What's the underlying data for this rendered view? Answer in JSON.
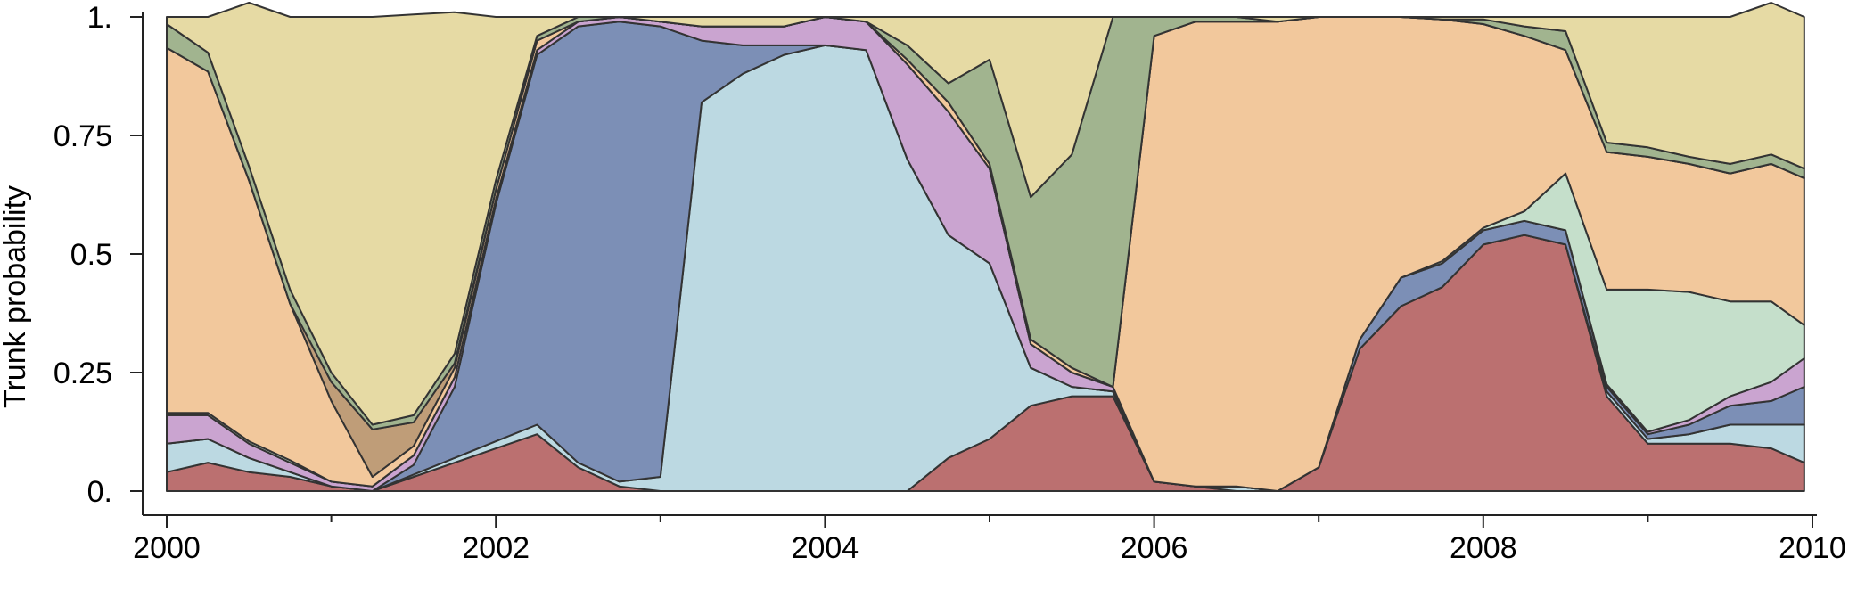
{
  "chart_data": {
    "type": "area",
    "stacked": true,
    "normalized": true,
    "title": "",
    "xlabel": "",
    "ylabel": "Trunk probability",
    "xlim": [
      2000,
      2010
    ],
    "ylim": [
      0,
      1
    ],
    "x_ticks": [
      2000,
      2002,
      2004,
      2006,
      2008,
      2010
    ],
    "x_tick_labels": [
      "2000",
      "2002",
      "2004",
      "2006",
      "2008",
      "2010"
    ],
    "y_ticks": [
      0,
      0.25,
      0.5,
      0.75,
      1
    ],
    "y_tick_labels": [
      "0.",
      "0.25",
      "0.5",
      "0.75",
      "1."
    ],
    "grid": false,
    "legend": "none",
    "x": [
      2000.0,
      2000.25,
      2000.5,
      2000.75,
      2001.0,
      2001.25,
      2001.5,
      2001.75,
      2002.0,
      2002.25,
      2002.5,
      2002.75,
      2003.0,
      2003.25,
      2003.5,
      2003.75,
      2004.0,
      2004.25,
      2004.5,
      2004.75,
      2005.0,
      2005.25,
      2005.5,
      2005.75,
      2006.0,
      2006.25,
      2006.5,
      2006.75,
      2007.0,
      2007.25,
      2007.5,
      2007.75,
      2008.0,
      2008.25,
      2008.5,
      2008.75,
      2009.0,
      2009.25,
      2009.5,
      2009.75,
      2009.95
    ],
    "series": [
      {
        "color": "#bb7070",
        "values": [
          0.04,
          0.06,
          0.04,
          0.03,
          0.01,
          0.0,
          0.03,
          0.06,
          0.09,
          0.12,
          0.05,
          0.01,
          0.0,
          0.0,
          0.0,
          0.0,
          0.0,
          0.0,
          0.0,
          0.07,
          0.11,
          0.18,
          0.2,
          0.2,
          0.02,
          0.01,
          0.0,
          0.0,
          0.05,
          0.3,
          0.39,
          0.43,
          0.52,
          0.54,
          0.52,
          0.2,
          0.1,
          0.1,
          0.1,
          0.09,
          0.06
        ]
      },
      {
        "color": "#bcd9e2",
        "values": [
          0.06,
          0.05,
          0.03,
          0.01,
          0.0,
          0.0,
          0.005,
          0.01,
          0.015,
          0.02,
          0.01,
          0.01,
          0.03,
          0.82,
          0.88,
          0.92,
          0.94,
          0.93,
          0.7,
          0.47,
          0.37,
          0.08,
          0.02,
          0.01,
          0.0,
          0.0,
          0.01,
          0.0,
          0.0,
          0.0,
          0.0,
          0.0,
          0.0,
          0.0,
          0.0,
          0.01,
          0.01,
          0.02,
          0.04,
          0.05,
          0.08
        ]
      },
      {
        "color": "#7c8fb6",
        "values": [
          0.0,
          0.0,
          0.0,
          0.0,
          0.0,
          0.0,
          0.02,
          0.15,
          0.5,
          0.78,
          0.92,
          0.97,
          0.95,
          0.13,
          0.06,
          0.02,
          0.0,
          0.0,
          0.0,
          0.0,
          0.0,
          0.0,
          0.0,
          0.0,
          0.0,
          0.0,
          0.0,
          0.0,
          0.0,
          0.02,
          0.06,
          0.05,
          0.03,
          0.03,
          0.03,
          0.01,
          0.01,
          0.02,
          0.04,
          0.05,
          0.08
        ]
      },
      {
        "color": "#caa4d0",
        "values": [
          0.06,
          0.05,
          0.03,
          0.02,
          0.01,
          0.01,
          0.02,
          0.02,
          0.01,
          0.01,
          0.01,
          0.01,
          0.01,
          0.03,
          0.04,
          0.04,
          0.06,
          0.06,
          0.2,
          0.26,
          0.2,
          0.05,
          0.03,
          0.01,
          0.0,
          0.0,
          0.0,
          0.0,
          0.0,
          0.0,
          0.0,
          0.0,
          0.0,
          0.0,
          0.0,
          0.005,
          0.005,
          0.01,
          0.02,
          0.04,
          0.06
        ]
      },
      {
        "color": "#c5dfcb",
        "values": [
          0.005,
          0.005,
          0.005,
          0.005,
          0.0,
          0.0,
          0.0,
          0.0,
          0.0,
          0.0,
          0.0,
          0.0,
          0.0,
          0.0,
          0.0,
          0.0,
          0.0,
          0.0,
          0.0,
          0.0,
          0.0,
          0.0,
          0.0,
          0.0,
          0.0,
          0.0,
          0.0,
          0.0,
          0.0,
          0.0,
          0.0,
          0.005,
          0.005,
          0.02,
          0.12,
          0.2,
          0.3,
          0.27,
          0.2,
          0.17,
          0.07
        ]
      },
      {
        "color": "#f2c89c",
        "values": [
          0.77,
          0.72,
          0.55,
          0.33,
          0.17,
          0.02,
          0.02,
          0.02,
          0.02,
          0.02,
          0.0,
          0.0,
          0.0,
          0.0,
          0.0,
          0.0,
          0.0,
          0.0,
          0.01,
          0.02,
          0.01,
          0.01,
          0.01,
          0.0,
          0.94,
          0.98,
          0.98,
          0.99,
          0.95,
          0.68,
          0.55,
          0.51,
          0.43,
          0.37,
          0.26,
          0.29,
          0.28,
          0.27,
          0.27,
          0.29,
          0.31
        ]
      },
      {
        "color": "#bf9d78",
        "values": [
          0.0,
          0.0,
          0.0,
          0.0,
          0.04,
          0.1,
          0.05,
          0.01,
          0.0,
          0.0,
          0.0,
          0.0,
          0.0,
          0.0,
          0.0,
          0.0,
          0.0,
          0.0,
          0.0,
          0.0,
          0.0,
          0.0,
          0.0,
          0.0,
          0.0,
          0.0,
          0.0,
          0.0,
          0.0,
          0.0,
          0.0,
          0.0,
          0.0,
          0.0,
          0.0,
          0.0,
          0.0,
          0.0,
          0.0,
          0.0,
          0.0
        ]
      },
      {
        "color": "#a1b48f",
        "values": [
          0.05,
          0.04,
          0.03,
          0.03,
          0.02,
          0.01,
          0.015,
          0.02,
          0.02,
          0.01,
          0.01,
          0.0,
          0.0,
          0.0,
          0.0,
          0.0,
          0.0,
          0.0,
          0.03,
          0.04,
          0.22,
          0.3,
          0.45,
          0.78,
          0.04,
          0.01,
          0.01,
          0.0,
          0.0,
          0.0,
          0.0,
          0.0,
          0.01,
          0.02,
          0.04,
          0.02,
          0.02,
          0.015,
          0.02,
          0.02,
          0.02
        ]
      },
      {
        "color": "#e6daa4",
        "values": [
          0.015,
          0.075,
          0.345,
          0.575,
          0.75,
          0.86,
          0.845,
          0.72,
          0.345,
          0.04,
          0.0,
          0.0,
          0.01,
          0.02,
          0.02,
          0.02,
          0.0,
          0.01,
          0.06,
          0.14,
          0.09,
          0.38,
          0.29,
          0.0,
          0.0,
          0.0,
          0.0,
          0.01,
          0.0,
          0.0,
          0.0,
          0.005,
          0.005,
          0.02,
          0.03,
          0.265,
          0.275,
          0.295,
          0.31,
          0.32,
          0.32
        ]
      }
    ]
  }
}
